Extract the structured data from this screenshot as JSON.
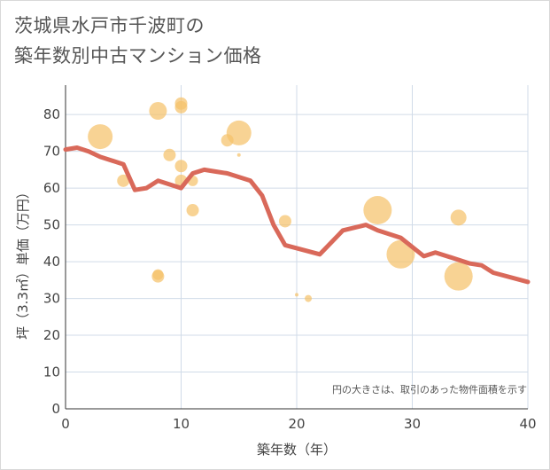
{
  "title_line1": "茨城県水戸市千波町の",
  "title_line2": "築年数別中古マンション価格",
  "chart_data": {
    "type": "scatter",
    "xlabel": "築年数（年）",
    "ylabel": "坪（3.3㎡）単価（万円）",
    "xlim": [
      0,
      40
    ],
    "ylim": [
      0,
      88
    ],
    "xticks": [
      0,
      10,
      20,
      30,
      40
    ],
    "yticks": [
      0,
      10,
      20,
      30,
      40,
      50,
      60,
      70,
      80
    ],
    "note": "円の大きさは、取引のあった物件面積を示す",
    "colors": {
      "bubble": "#f5c26b",
      "line": "#d9695a",
      "grid": "#d0dbe8"
    },
    "bubbles": [
      {
        "x": 3,
        "y": 74,
        "size": 14
      },
      {
        "x": 5,
        "y": 62,
        "size": 7
      },
      {
        "x": 8,
        "y": 81,
        "size": 10
      },
      {
        "x": 8,
        "y": 36.5,
        "size": 6
      },
      {
        "x": 8,
        "y": 36,
        "size": 7
      },
      {
        "x": 9,
        "y": 69,
        "size": 7
      },
      {
        "x": 10,
        "y": 83,
        "size": 7
      },
      {
        "x": 10,
        "y": 82,
        "size": 7
      },
      {
        "x": 10,
        "y": 66,
        "size": 7
      },
      {
        "x": 10,
        "y": 62,
        "size": 7
      },
      {
        "x": 11,
        "y": 62,
        "size": 6
      },
      {
        "x": 11,
        "y": 54,
        "size": 7
      },
      {
        "x": 14,
        "y": 73,
        "size": 7
      },
      {
        "x": 15,
        "y": 75,
        "size": 14
      },
      {
        "x": 15,
        "y": 69,
        "size": 2
      },
      {
        "x": 19,
        "y": 51,
        "size": 7
      },
      {
        "x": 20,
        "y": 31,
        "size": 2
      },
      {
        "x": 21,
        "y": 30,
        "size": 4
      },
      {
        "x": 27,
        "y": 54,
        "size": 16
      },
      {
        "x": 29,
        "y": 42,
        "size": 16
      },
      {
        "x": 34,
        "y": 52,
        "size": 9
      },
      {
        "x": 34,
        "y": 36,
        "size": 16
      }
    ],
    "trend": {
      "x": [
        0,
        1,
        2,
        3,
        5,
        6,
        7,
        8,
        10,
        11,
        12,
        13,
        14,
        16,
        17,
        18,
        19,
        22,
        24,
        26,
        27,
        29,
        31,
        32,
        35,
        36,
        37,
        40
      ],
      "y": [
        70.5,
        71,
        70,
        68.5,
        66.5,
        59.5,
        60,
        62,
        60,
        64,
        65,
        64.5,
        64,
        62,
        58,
        50,
        44.5,
        42,
        48.5,
        50,
        48.5,
        46.5,
        41.5,
        42.5,
        39.5,
        39,
        37,
        34.5
      ]
    }
  }
}
